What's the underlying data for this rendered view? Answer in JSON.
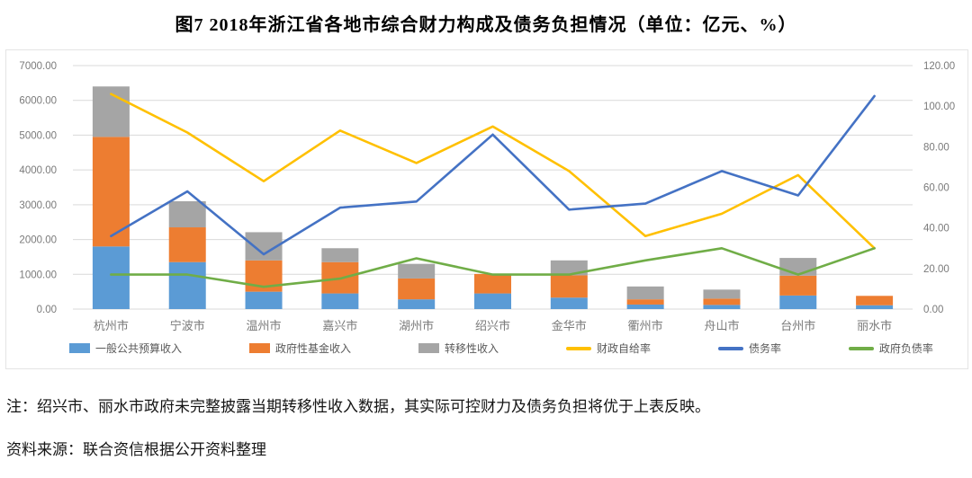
{
  "title": "图7  2018年浙江省各地市综合财力构成及债务负担情况（单位：亿元、%）",
  "note": "注：绍兴市、丽水市政府未完整披露当期转移性收入数据，其实际可控财力及债务负担将优于上表反映。",
  "source": "资料来源：联合资信根据公开资料整理",
  "colors": {
    "grid": "#d9d9d9",
    "axis_text": "#7a7a7a",
    "frame_border": "#e4e4e4"
  },
  "chart_data": {
    "type": "bar",
    "subtype": "stacked-bars-with-lines-combo",
    "title": "2018年浙江省各地市综合财力构成及债务负担情况",
    "xlabel": "",
    "ylabel_left": "亿元",
    "ylabel_right": "%",
    "grid": true,
    "legend_position": "bottom",
    "categories": [
      "杭州市",
      "宁波市",
      "温州市",
      "嘉兴市",
      "湖州市",
      "绍兴市",
      "金华市",
      "衢州市",
      "舟山市",
      "台州市",
      "丽水市"
    ],
    "bar_series": [
      {
        "name": "一般公共预算收入",
        "axis": "left",
        "color": "#5B9BD5",
        "values": [
          1800,
          1350,
          500,
          450,
          280,
          450,
          330,
          130,
          120,
          390,
          110
        ]
      },
      {
        "name": "政府性基金收入",
        "axis": "left",
        "color": "#ED7D31",
        "values": [
          3150,
          1000,
          900,
          900,
          600,
          560,
          640,
          150,
          180,
          570,
          270
        ]
      },
      {
        "name": "转移性收入",
        "axis": "left",
        "color": "#A5A5A5",
        "values": [
          1450,
          750,
          810,
          400,
          420,
          0,
          430,
          370,
          260,
          510,
          0
        ]
      }
    ],
    "line_series": [
      {
        "name": "财政自给率",
        "axis": "right",
        "color": "#FFC000",
        "values": [
          106,
          87,
          63,
          88,
          72,
          90,
          68,
          36,
          47,
          66,
          30
        ]
      },
      {
        "name": "债务率",
        "axis": "right",
        "color": "#4472C4",
        "values": [
          36,
          58,
          27,
          50,
          53,
          86,
          49,
          52,
          68,
          56,
          105
        ]
      },
      {
        "name": "政府负债率",
        "axis": "right",
        "color": "#70AD47",
        "values": [
          17,
          17,
          11,
          15,
          25,
          17,
          17,
          24,
          30,
          17,
          30
        ]
      }
    ],
    "left_axis": {
      "min": 0,
      "max": 7000,
      "step": 1000,
      "ticks": [
        "7000.00",
        "6000.00",
        "5000.00",
        "4000.00",
        "3000.00",
        "2000.00",
        "1000.00",
        "0.00"
      ]
    },
    "right_axis": {
      "min": 0,
      "max": 120,
      "step": 20,
      "ticks": [
        "120.00",
        "100.00",
        "80.00",
        "60.00",
        "40.00",
        "20.00",
        "0.00"
      ]
    }
  }
}
